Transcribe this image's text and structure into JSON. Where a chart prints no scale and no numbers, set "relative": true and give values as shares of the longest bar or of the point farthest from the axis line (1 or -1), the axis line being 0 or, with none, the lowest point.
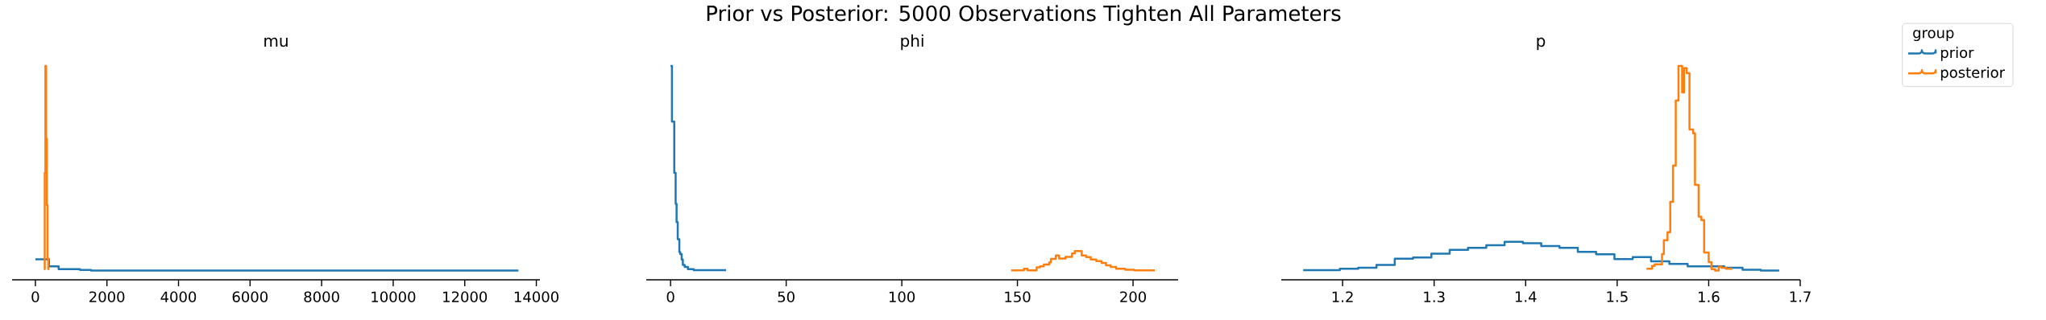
{
  "chart_data": [
    {
      "type": "step",
      "title": "mu",
      "relative": true,
      "annotations": [
        "Prior vs Posterior: 5000 Observations Tighten All Parameters"
      ],
      "xlim": [
        -650,
        14100
      ],
      "xticks": [
        0,
        2000,
        4000,
        6000,
        8000,
        10000,
        12000,
        14000
      ],
      "series": [
        {
          "color": "#1f77b4",
          "x": [
            0,
            380,
            650,
            1250,
            1560,
            13500
          ],
          "values": [
            0.096,
            0.063,
            0.05,
            0.046,
            0.043,
            0.043
          ]
        },
        {
          "color": "#ff7f0e",
          "x": [
            241,
            262,
            281,
            301,
            321,
            341,
            362,
            382
          ],
          "values": [
            0.05,
            0.5,
            1.0,
            0.66,
            0.35,
            0.1,
            0.05,
            0.05
          ]
        }
      ]
    },
    {
      "type": "step",
      "title": "phi",
      "relative": true,
      "xlim": [
        -10.5,
        219.5
      ],
      "xticks": [
        0,
        50,
        100,
        150,
        200
      ],
      "series": [
        {
          "color": "#1f77b4",
          "x": [
            0,
            0.6,
            1.6,
            2.2,
            2.6,
            3.1,
            3.8,
            4.2,
            4.8,
            5.3,
            6.1,
            7.5,
            10,
            24
          ],
          "values": [
            1.0,
            0.74,
            0.5,
            0.355,
            0.27,
            0.19,
            0.13,
            0.12,
            0.095,
            0.07,
            0.06,
            0.05,
            0.045,
            0.045
          ]
        },
        {
          "color": "#ff7f0e",
          "x": [
            147.3,
            152.8,
            154.4,
            158.3,
            159.8,
            161.4,
            163.8,
            164.5,
            166.6,
            168,
            170.8,
            173.6,
            174.8,
            177.8,
            179.7,
            181.7,
            184.1,
            186.4,
            188.3,
            190.3,
            192.7,
            196.6,
            200.5,
            209.4
          ],
          "values": [
            0.044,
            0.052,
            0.044,
            0.058,
            0.063,
            0.071,
            0.082,
            0.098,
            0.114,
            0.1,
            0.107,
            0.123,
            0.134,
            0.114,
            0.106,
            0.095,
            0.087,
            0.079,
            0.068,
            0.06,
            0.052,
            0.047,
            0.044,
            0.044
          ]
        }
      ]
    },
    {
      "type": "step",
      "title": "p",
      "relative": true,
      "legend": "top right",
      "legend_title": "group",
      "xlim": [
        1.133,
        1.7
      ],
      "xticks": [
        1.2,
        1.3,
        1.4,
        1.5,
        1.6,
        1.7
      ],
      "series": [
        {
          "name": "prior",
          "color": "#1f77b4",
          "x": [
            1.157,
            1.177,
            1.197,
            1.217,
            1.237,
            1.257,
            1.277,
            1.297,
            1.317,
            1.337,
            1.357,
            1.377,
            1.397,
            1.417,
            1.437,
            1.457,
            1.477,
            1.497,
            1.517,
            1.537,
            1.557,
            1.577,
            1.597,
            1.617,
            1.637,
            1.657,
            1.677
          ],
          "values": [
            0.045,
            0.045,
            0.052,
            0.056,
            0.07,
            0.099,
            0.104,
            0.122,
            0.14,
            0.149,
            0.162,
            0.178,
            0.171,
            0.158,
            0.149,
            0.131,
            0.119,
            0.097,
            0.106,
            0.086,
            0.074,
            0.063,
            0.063,
            0.056,
            0.047,
            0.043,
            0.043
          ]
        },
        {
          "name": "posterior",
          "color": "#ff7f0e",
          "x": [
            1.532,
            1.538,
            1.541,
            1.549,
            1.551,
            1.555,
            1.558,
            1.561,
            1.564,
            1.567,
            1.571,
            1.573,
            1.576,
            1.579,
            1.583,
            1.585,
            1.589,
            1.592,
            1.595,
            1.6,
            1.603,
            1.607,
            1.611,
            1.614,
            1.619,
            1.626
          ],
          "values": [
            0.052,
            0.065,
            0.072,
            0.12,
            0.185,
            0.223,
            0.365,
            0.534,
            0.838,
            1.0,
            0.876,
            0.99,
            0.966,
            0.703,
            0.685,
            0.444,
            0.295,
            0.279,
            0.128,
            0.083,
            0.05,
            0.043,
            0.061,
            0.056,
            0.052,
            0.052
          ]
        }
      ]
    }
  ]
}
